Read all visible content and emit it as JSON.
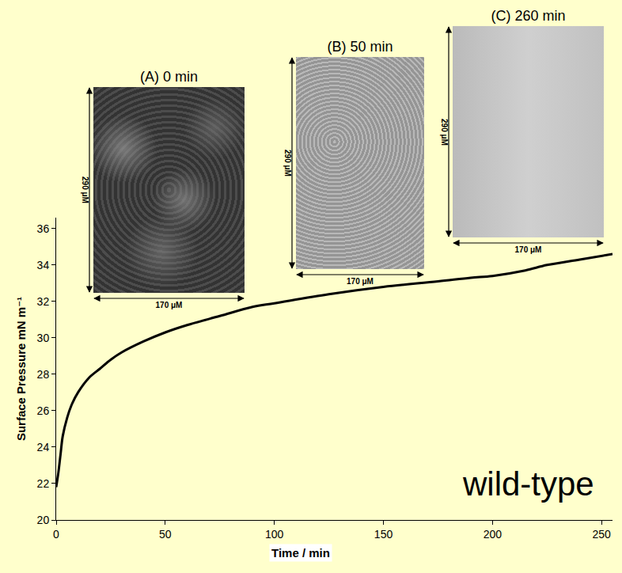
{
  "chart_data": {
    "type": "line",
    "x": [
      0,
      1,
      2,
      3,
      5,
      7,
      10,
      15,
      20,
      25,
      30,
      40,
      50,
      60,
      75,
      90,
      100,
      125,
      150,
      175,
      190,
      200,
      215,
      225,
      240,
      255
    ],
    "values": [
      21.8,
      22.6,
      23.6,
      24.6,
      25.6,
      26.3,
      27.0,
      27.8,
      28.3,
      28.8,
      29.2,
      29.8,
      30.3,
      30.7,
      31.2,
      31.7,
      31.9,
      32.4,
      32.8,
      33.1,
      33.3,
      33.4,
      33.7,
      34.0,
      34.3,
      34.6
    ],
    "color": "#000000",
    "xlabel": "Time / min",
    "ylabel": "Surface Pressure mN m⁻¹",
    "xlim": [
      0,
      255
    ],
    "xticks": [
      0,
      50,
      100,
      150,
      200,
      250
    ],
    "ylim": [
      20,
      36.6
    ],
    "yticks": [
      20,
      22,
      24,
      26,
      28,
      30,
      32,
      34,
      36
    ],
    "grid": false,
    "annotations": [
      "wild-type"
    ]
  },
  "insets": [
    {
      "title": "(A) 0 min",
      "height_label": "290 μM",
      "width_label": "170 μM"
    },
    {
      "title": "(B) 50 min",
      "height_label": "290 μM",
      "width_label": "170 μM"
    },
    {
      "title": "(C) 260 min",
      "height_label": "290 μM",
      "width_label": "170 μM"
    }
  ]
}
